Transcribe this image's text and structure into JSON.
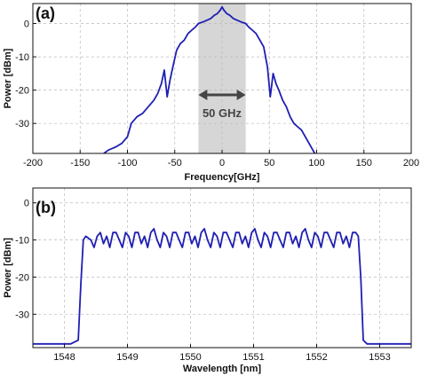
{
  "chart_data": [
    {
      "panel_label": "(a)",
      "type": "line",
      "xlabel": "Frequency[GHz]",
      "ylabel": "Power [dBm]",
      "xlim": [
        -200,
        200
      ],
      "ylim": [
        -39,
        6
      ],
      "xticks": [
        -200,
        -150,
        -100,
        -50,
        0,
        50,
        100,
        150,
        200
      ],
      "yticks": [
        0,
        -10,
        -20,
        -30
      ],
      "grid": true,
      "color": "#1f1fb4",
      "band": {
        "x0": -25,
        "x1": 25,
        "fill": "#d6d6d6"
      },
      "annotation": "50 GHz",
      "series": [
        {
          "x": [
            -125,
            -120,
            -112,
            -106,
            -100,
            -96,
            -90,
            -84,
            -78,
            -72,
            -68,
            -64,
            -61,
            -58,
            -55,
            -52,
            -48,
            -44,
            -40,
            -36,
            -32,
            -28,
            -25,
            -20,
            -16,
            -12,
            -8,
            -5,
            -2,
            0,
            2,
            5,
            8,
            12,
            16,
            20,
            25,
            28,
            32,
            36,
            40,
            44,
            48,
            51,
            54,
            57,
            60,
            64,
            68,
            72,
            76,
            80,
            84,
            88,
            92,
            96,
            98
          ],
          "y": [
            -39,
            -38,
            -37,
            -36,
            -34,
            -30,
            -28,
            -27,
            -25,
            -23,
            -21,
            -18,
            -14,
            -22,
            -17,
            -13,
            -8,
            -6,
            -5,
            -3,
            -2,
            -1,
            0,
            0.5,
            1,
            1.5,
            2.5,
            3,
            4,
            5,
            4,
            3,
            2.5,
            1.5,
            1,
            0.5,
            0,
            -1,
            -2,
            -3,
            -5,
            -7,
            -13,
            -22,
            -15,
            -18,
            -20,
            -23,
            -25,
            -28,
            -30,
            -31,
            -32,
            -34,
            -36,
            -38,
            -39
          ]
        }
      ]
    },
    {
      "panel_label": "(b)",
      "type": "line",
      "xlabel": "Wavelength [nm]",
      "ylabel": "Power [dBm]",
      "xlim": [
        1547.5,
        1553.5
      ],
      "ylim": [
        -39,
        4
      ],
      "xticks": [
        1548,
        1549,
        1550,
        1551,
        1552,
        1553
      ],
      "yticks": [
        0,
        -10,
        -20,
        -30
      ],
      "grid": true,
      "color": "#1f1fb4",
      "series": [
        {
          "x": [
            1547.5,
            1547.8,
            1548.1,
            1548.22,
            1548.26,
            1548.3,
            1548.34,
            1548.42,
            1548.47,
            1548.52,
            1548.57,
            1548.62,
            1548.67,
            1548.72,
            1548.77,
            1548.82,
            1548.87,
            1548.92,
            1548.97,
            1549.02,
            1549.07,
            1549.12,
            1549.17,
            1549.22,
            1549.27,
            1549.32,
            1549.37,
            1549.42,
            1549.47,
            1549.52,
            1549.57,
            1549.62,
            1549.67,
            1549.72,
            1549.77,
            1549.82,
            1549.87,
            1549.92,
            1549.97,
            1550.02,
            1550.07,
            1550.12,
            1550.17,
            1550.22,
            1550.27,
            1550.32,
            1550.37,
            1550.42,
            1550.47,
            1550.52,
            1550.57,
            1550.62,
            1550.67,
            1550.72,
            1550.77,
            1550.82,
            1550.87,
            1550.92,
            1550.97,
            1551.02,
            1551.07,
            1551.12,
            1551.17,
            1551.22,
            1551.27,
            1551.32,
            1551.37,
            1551.42,
            1551.47,
            1551.52,
            1551.57,
            1551.62,
            1551.67,
            1551.72,
            1551.77,
            1551.82,
            1551.87,
            1551.92,
            1551.97,
            1552.02,
            1552.07,
            1552.12,
            1552.17,
            1552.22,
            1552.27,
            1552.32,
            1552.37,
            1552.42,
            1552.47,
            1552.52,
            1552.57,
            1552.62,
            1552.66,
            1552.7,
            1552.74,
            1552.8,
            1553.0,
            1553.5
          ],
          "y": [
            -38,
            -38,
            -38,
            -37,
            -22,
            -10,
            -9,
            -10,
            -12,
            -9,
            -8,
            -11,
            -9,
            -12,
            -8,
            -8,
            -10,
            -12,
            -8,
            -9,
            -12,
            -8,
            -8,
            -11,
            -9,
            -12,
            -8,
            -7,
            -10,
            -12,
            -8,
            -9,
            -12,
            -8,
            -8,
            -10,
            -12,
            -8,
            -8,
            -11,
            -9,
            -12,
            -8,
            -7,
            -10,
            -12,
            -8,
            -9,
            -12,
            -8,
            -8,
            -10,
            -12,
            -8,
            -8,
            -11,
            -9,
            -12,
            -8,
            -7,
            -10,
            -12,
            -8,
            -9,
            -12,
            -8,
            -8,
            -10,
            -12,
            -8,
            -8,
            -11,
            -9,
            -12,
            -8,
            -7,
            -10,
            -12,
            -8,
            -9,
            -12,
            -8,
            -8,
            -10,
            -12,
            -8,
            -8,
            -11,
            -9,
            -12,
            -8,
            -8,
            -9,
            -20,
            -37,
            -38,
            -38,
            -38
          ]
        }
      ]
    }
  ]
}
